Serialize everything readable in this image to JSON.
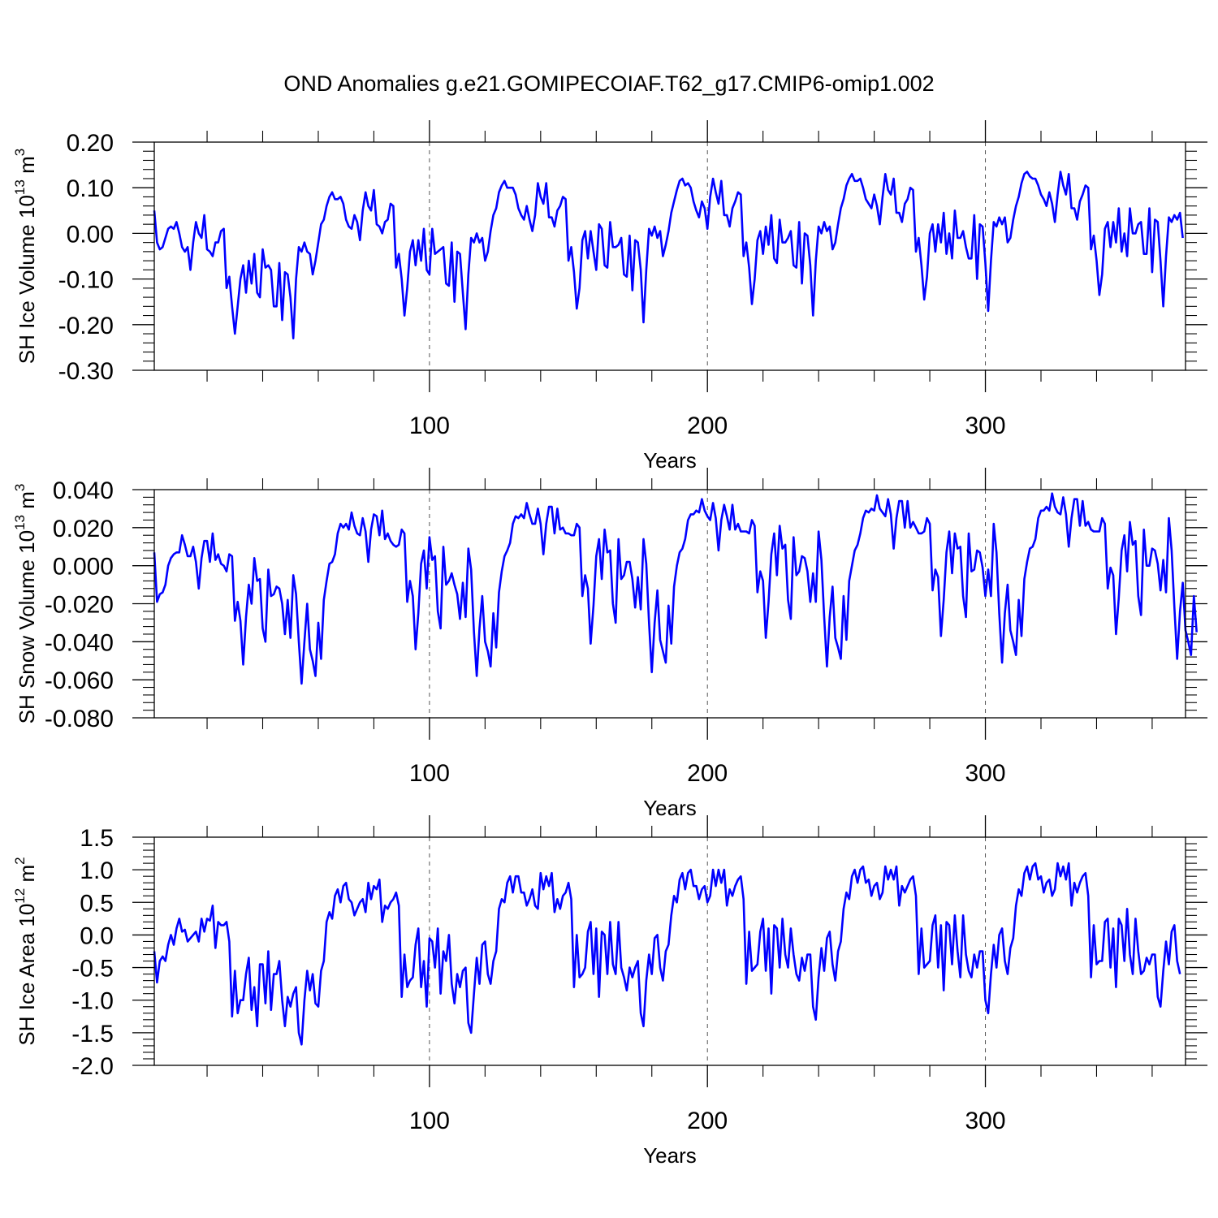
{
  "title": "OND Anomalies g.e21.GOMIPECOIAF.T62_g17.CMIP6-omip1.002",
  "line_color": "#0000ff",
  "chart_data": [
    {
      "type": "line",
      "name": "ice-volume",
      "title": "OND Anomalies g.e21.GOMIPECOIAF.T62_g17.CMIP6-omip1.002",
      "xlabel": "Years",
      "ylabel": {
        "main": "SH Ice Volume 10",
        "sup1": "13",
        "mid": " m",
        "sup2": "3"
      },
      "xlim": [
        1,
        372
      ],
      "ylim": [
        -0.3,
        0.2
      ],
      "x_ticks": [
        100,
        200,
        300
      ],
      "x_tick_labels": [
        "100",
        "200",
        "300"
      ],
      "y_ticks": [
        -0.3,
        -0.2,
        -0.1,
        0.0,
        0.1,
        0.2
      ],
      "y_tick_labels": [
        "-0.30",
        "-0.20",
        "-0.10",
        "0.00",
        "0.10",
        "0.20"
      ],
      "ref_lines_x": [
        100,
        200,
        300
      ],
      "x_start": 1,
      "values": [
        0.05,
        -0.02,
        -0.035,
        -0.03,
        -0.01,
        0.01,
        0.015,
        0.01,
        0.025,
        0.0,
        -0.03,
        -0.04,
        -0.03,
        -0.08,
        -0.02,
        0.025,
        0.0,
        -0.01,
        0.04,
        -0.035,
        -0.04,
        -0.05,
        -0.02,
        -0.02,
        0.005,
        0.01,
        -0.12,
        -0.095,
        -0.16,
        -0.22,
        -0.16,
        -0.1,
        -0.07,
        -0.13,
        -0.06,
        -0.11,
        -0.045,
        -0.13,
        -0.14,
        -0.035,
        -0.075,
        -0.07,
        -0.08,
        -0.16,
        -0.16,
        -0.065,
        -0.19,
        -0.085,
        -0.09,
        -0.14,
        -0.23,
        -0.1,
        -0.03,
        -0.04,
        -0.02,
        -0.04,
        -0.045,
        -0.09,
        -0.06,
        -0.02,
        0.02,
        0.03,
        0.06,
        0.08,
        0.09,
        0.075,
        0.075,
        0.08,
        0.065,
        0.03,
        0.015,
        0.01,
        0.04,
        0.025,
        -0.015,
        0.05,
        0.09,
        0.06,
        0.05,
        0.095,
        0.02,
        0.015,
        0.0,
        0.025,
        0.03,
        0.065,
        0.06,
        -0.075,
        -0.045,
        -0.1,
        -0.18,
        -0.12,
        -0.04,
        -0.015,
        -0.07,
        -0.015,
        -0.06,
        0.01,
        -0.08,
        -0.09,
        0.01,
        -0.045,
        -0.04,
        -0.035,
        -0.03,
        -0.11,
        -0.115,
        -0.02,
        -0.15,
        -0.04,
        -0.045,
        -0.13,
        -0.21,
        -0.09,
        -0.01,
        -0.02,
        0.0,
        -0.02,
        -0.01,
        -0.06,
        -0.04,
        0.005,
        0.04,
        0.055,
        0.09,
        0.105,
        0.115,
        0.1,
        0.1,
        0.1,
        0.085,
        0.055,
        0.04,
        0.03,
        0.06,
        0.03,
        0.005,
        0.04,
        0.11,
        0.08,
        0.065,
        0.11,
        0.035,
        0.035,
        0.015,
        0.05,
        0.06,
        0.08,
        0.075,
        -0.06,
        -0.03,
        -0.085,
        -0.165,
        -0.12,
        -0.015,
        0.005,
        -0.055,
        0.005,
        -0.04,
        -0.08,
        0.02,
        0.01,
        -0.07,
        -0.075,
        0.025,
        -0.03,
        -0.03,
        -0.025,
        -0.01,
        -0.09,
        -0.095,
        -0.005,
        -0.125,
        -0.015,
        -0.02,
        -0.08,
        -0.195,
        -0.08,
        0.01,
        -0.005,
        0.015,
        -0.01,
        0.005,
        -0.05,
        -0.025,
        0.005,
        0.045,
        0.07,
        0.095,
        0.115,
        0.12,
        0.105,
        0.11,
        0.1,
        0.07,
        0.05,
        0.035,
        0.07,
        0.055,
        0.01,
        0.08,
        0.12,
        0.09,
        0.065,
        0.115,
        0.04,
        0.04,
        0.015,
        0.055,
        0.07,
        0.09,
        0.085,
        -0.05,
        -0.02,
        -0.075,
        -0.155,
        -0.1,
        -0.015,
        0.005,
        -0.045,
        0.015,
        -0.025,
        0.04,
        -0.055,
        -0.065,
        0.03,
        -0.02,
        -0.02,
        -0.01,
        0.005,
        -0.07,
        -0.075,
        0.025,
        -0.11,
        0.0,
        -0.005,
        -0.07,
        -0.18,
        -0.06,
        0.015,
        0.0,
        0.025,
        0.005,
        0.015,
        -0.035,
        -0.02,
        0.02,
        0.055,
        0.075,
        0.105,
        0.12,
        0.13,
        0.115,
        0.115,
        0.12,
        0.1,
        0.075,
        0.065,
        0.055,
        0.085,
        0.06,
        0.02,
        0.08,
        0.13,
        0.095,
        0.085,
        0.12,
        0.045,
        0.045,
        0.025,
        0.065,
        0.075,
        0.1,
        0.095,
        -0.04,
        -0.01,
        -0.07,
        -0.145,
        -0.095,
        0.0,
        0.02,
        -0.04,
        0.02,
        -0.02,
        0.045,
        -0.045,
        0.0,
        -0.055,
        0.05,
        -0.01,
        -0.01,
        0.005,
        -0.03,
        -0.055,
        -0.055,
        0.04,
        -0.1,
        0.02,
        0.015,
        -0.065,
        -0.17,
        -0.06,
        0.025,
        0.015,
        0.035,
        0.02,
        0.035,
        -0.02,
        -0.01,
        0.03,
        0.06,
        0.08,
        0.11,
        0.13,
        0.135,
        0.125,
        0.12,
        0.12,
        0.105,
        0.085,
        0.075,
        0.06,
        0.09,
        0.065,
        0.025,
        0.085,
        0.135,
        0.105,
        0.085,
        0.13,
        0.055,
        0.055,
        0.03,
        0.07,
        0.085,
        0.105,
        0.1,
        -0.035,
        -0.005,
        -0.06,
        -0.135,
        -0.09,
        0.01,
        0.025,
        -0.03,
        0.025,
        -0.02,
        0.055,
        -0.04,
        0.0,
        -0.05,
        0.055,
        0.0,
        0.0,
        0.02,
        0.025,
        -0.045,
        -0.045,
        0.055,
        -0.085,
        0.03,
        0.025,
        -0.06,
        -0.16,
        -0.05,
        0.035,
        0.025,
        0.04,
        0.03,
        0.045,
        -0.01
      ]
    },
    {
      "type": "line",
      "name": "snow-volume",
      "xlabel": "Years",
      "ylabel": {
        "main": "SH Snow Volume 10",
        "sup1": "13",
        "mid": " m",
        "sup2": "3"
      },
      "xlim": [
        1,
        372
      ],
      "ylim": [
        -0.08,
        0.04
      ],
      "x_ticks": [
        100,
        200,
        300
      ],
      "x_tick_labels": [
        "100",
        "200",
        "300"
      ],
      "y_ticks": [
        -0.08,
        -0.06,
        -0.04,
        -0.02,
        0.0,
        0.02,
        0.04
      ],
      "y_tick_labels": [
        "-0.080",
        "-0.060",
        "-0.040",
        "-0.020",
        "0.000",
        "0.020",
        "0.040"
      ],
      "ref_lines_x": [
        100,
        200,
        300
      ],
      "x_start": 1,
      "values": [
        0.007,
        -0.019,
        -0.015,
        -0.014,
        -0.01,
        0.0,
        0.004,
        0.006,
        0.007,
        0.007,
        0.016,
        0.011,
        0.005,
        0.005,
        0.01,
        0.002,
        -0.012,
        0.004,
        0.013,
        0.013,
        0.002,
        0.017,
        0.003,
        0.006,
        0.001,
        0.0,
        -0.003,
        0.006,
        0.005,
        -0.029,
        -0.019,
        -0.029,
        -0.052,
        -0.027,
        -0.01,
        -0.02,
        0.004,
        -0.008,
        -0.007,
        -0.033,
        -0.04,
        -0.002,
        -0.016,
        -0.015,
        -0.011,
        -0.012,
        -0.02,
        -0.036,
        -0.018,
        -0.038,
        -0.005,
        -0.015,
        -0.04,
        -0.062,
        -0.04,
        -0.02,
        -0.044,
        -0.05,
        -0.058,
        -0.03,
        -0.049,
        -0.018,
        -0.008,
        0.001,
        0.002,
        0.006,
        0.017,
        0.022,
        0.02,
        0.022,
        0.019,
        0.028,
        0.021,
        0.017,
        0.016,
        0.025,
        0.018,
        0.002,
        0.019,
        0.027,
        0.026,
        0.016,
        0.029,
        0.014,
        0.017,
        0.013,
        0.011,
        0.01,
        0.011,
        0.019,
        0.017,
        -0.019,
        -0.008,
        -0.016,
        -0.044,
        -0.025,
        0.001,
        0.008,
        -0.012,
        0.015,
        0.003,
        0.005,
        -0.024,
        -0.033,
        0.01,
        -0.01,
        -0.008,
        -0.004,
        -0.01,
        -0.015,
        -0.028,
        -0.009,
        -0.027,
        0.009,
        -0.002,
        -0.035,
        -0.058,
        -0.033,
        -0.016,
        -0.04,
        -0.045,
        -0.053,
        -0.025,
        -0.043,
        -0.014,
        -0.003,
        0.005,
        0.008,
        0.012,
        0.022,
        0.026,
        0.025,
        0.027,
        0.025,
        0.033,
        0.027,
        0.022,
        0.022,
        0.03,
        0.022,
        0.006,
        0.022,
        0.031,
        0.031,
        0.017,
        0.03,
        0.019,
        0.02,
        0.017,
        0.017,
        0.016,
        0.016,
        0.022,
        0.02,
        -0.016,
        -0.005,
        -0.012,
        -0.041,
        -0.021,
        0.005,
        0.014,
        -0.007,
        0.019,
        0.007,
        0.008,
        -0.02,
        -0.03,
        0.014,
        -0.007,
        -0.005,
        0.002,
        0.002,
        -0.007,
        -0.022,
        -0.006,
        -0.023,
        0.014,
        0.001,
        -0.03,
        -0.056,
        -0.03,
        -0.013,
        -0.039,
        -0.045,
        -0.051,
        -0.021,
        -0.041,
        -0.011,
        0.0,
        0.007,
        0.009,
        0.014,
        0.024,
        0.027,
        0.027,
        0.029,
        0.028,
        0.035,
        0.029,
        0.026,
        0.024,
        0.033,
        0.025,
        0.008,
        0.024,
        0.032,
        0.026,
        0.019,
        0.032,
        0.019,
        0.022,
        0.018,
        0.018,
        0.018,
        0.017,
        0.024,
        0.021,
        -0.014,
        -0.003,
        -0.008,
        -0.038,
        -0.019,
        0.006,
        0.017,
        -0.005,
        0.021,
        0.009,
        0.011,
        -0.018,
        -0.028,
        0.015,
        -0.005,
        -0.003,
        0.005,
        0.004,
        -0.003,
        -0.019,
        -0.004,
        -0.019,
        0.018,
        0.003,
        -0.027,
        -0.053,
        -0.027,
        -0.011,
        -0.038,
        -0.043,
        -0.049,
        -0.016,
        -0.039,
        -0.008,
        0.0,
        0.008,
        0.011,
        0.017,
        0.025,
        0.029,
        0.028,
        0.03,
        0.029,
        0.037,
        0.03,
        0.028,
        0.026,
        0.035,
        0.027,
        0.009,
        0.025,
        0.034,
        0.034,
        0.02,
        0.034,
        0.02,
        0.023,
        0.02,
        0.017,
        0.017,
        0.018,
        0.025,
        0.022,
        -0.013,
        -0.002,
        -0.006,
        -0.037,
        -0.018,
        0.007,
        0.018,
        -0.004,
        0.017,
        0.009,
        0.01,
        -0.016,
        -0.027,
        0.017,
        -0.003,
        -0.002,
        0.008,
        0.007,
        -0.001,
        -0.016,
        -0.002,
        -0.016,
        0.022,
        0.007,
        -0.025,
        -0.051,
        -0.025,
        -0.01,
        -0.034,
        -0.04,
        -0.047,
        -0.018,
        -0.037,
        -0.007,
        0.002,
        0.009,
        0.01,
        0.014,
        0.025,
        0.029,
        0.029,
        0.031,
        0.029,
        0.038,
        0.031,
        0.028,
        0.027,
        0.036,
        0.027,
        0.01,
        0.025,
        0.035,
        0.035,
        0.021,
        0.034,
        0.021,
        0.023,
        0.019,
        0.018,
        0.018,
        0.018,
        0.025,
        0.022,
        -0.012,
        -0.001,
        -0.005,
        -0.036,
        -0.017,
        0.008,
        0.016,
        -0.003,
        0.023,
        0.011,
        0.013,
        -0.016,
        -0.026,
        0.019,
        0.0,
        0.0,
        0.009,
        0.008,
        0.001,
        -0.013,
        0.003,
        -0.014,
        0.025,
        0.008,
        -0.022,
        -0.049,
        -0.024,
        -0.009,
        -0.034,
        -0.04,
        -0.047,
        -0.016,
        -0.035
      ]
    },
    {
      "type": "line",
      "name": "ice-area",
      "xlabel": "Years",
      "ylabel": {
        "main": "SH Ice Area 10",
        "sup1": "12",
        "mid": " m",
        "sup2": "2"
      },
      "xlim": [
        1,
        372
      ],
      "ylim": [
        -2.0,
        1.5
      ],
      "x_ticks": [
        100,
        200,
        300
      ],
      "x_tick_labels": [
        "100",
        "200",
        "300"
      ],
      "y_ticks": [
        -2.0,
        -1.5,
        -1.0,
        -0.5,
        0.0,
        0.5,
        1.0,
        1.5
      ],
      "y_tick_labels": [
        "-2.0",
        "-1.5",
        "-1.0",
        "-0.5",
        "0.0",
        "0.5",
        "1.0",
        "1.5"
      ],
      "ref_lines_x": [
        100,
        200,
        300
      ],
      "x_start": 1,
      "values": [
        -0.25,
        -0.73,
        -0.4,
        -0.33,
        -0.4,
        -0.15,
        0.0,
        -0.15,
        0.1,
        0.25,
        0.05,
        0.08,
        -0.1,
        -0.05,
        0.0,
        0.05,
        -0.1,
        0.25,
        0.05,
        0.25,
        0.22,
        0.45,
        -0.2,
        0.2,
        0.15,
        0.15,
        0.2,
        -0.1,
        -1.25,
        -0.55,
        -1.2,
        -1.0,
        -1.0,
        -0.6,
        -0.35,
        -1.15,
        -0.8,
        -1.4,
        -0.45,
        -0.45,
        -1.05,
        -0.25,
        -1.15,
        -0.6,
        -0.6,
        -0.4,
        -1.0,
        -1.4,
        -0.95,
        -1.1,
        -0.9,
        -0.8,
        -1.5,
        -1.68,
        -1.0,
        -0.55,
        -0.85,
        -0.6,
        -1.05,
        -1.1,
        -0.55,
        -0.4,
        0.2,
        0.35,
        0.25,
        0.6,
        0.7,
        0.5,
        0.75,
        0.8,
        0.55,
        0.5,
        0.3,
        0.4,
        0.5,
        0.55,
        0.35,
        0.8,
        0.55,
        0.75,
        0.7,
        0.85,
        0.2,
        0.45,
        0.4,
        0.5,
        0.55,
        0.65,
        0.45,
        -0.95,
        -0.3,
        -0.8,
        -0.7,
        -0.65,
        -0.15,
        0.1,
        -0.8,
        -0.4,
        -1.1,
        -0.05,
        -0.1,
        -0.5,
        0.1,
        -0.9,
        -0.25,
        -0.4,
        0.0,
        -0.75,
        -1.05,
        -0.6,
        -0.8,
        -0.55,
        -0.5,
        -1.35,
        -1.5,
        -0.9,
        -0.35,
        -0.75,
        -0.15,
        -0.1,
        -0.6,
        -0.75,
        -0.4,
        -0.25,
        0.4,
        0.55,
        0.5,
        0.8,
        0.9,
        0.65,
        0.9,
        0.9,
        0.65,
        0.65,
        0.45,
        0.55,
        0.7,
        0.45,
        0.4,
        0.95,
        0.7,
        0.9,
        0.75,
        0.95,
        0.35,
        0.55,
        0.4,
        0.6,
        0.65,
        0.8,
        0.55,
        -0.8,
        0.0,
        -0.65,
        -0.6,
        -0.5,
        0.05,
        0.2,
        -0.6,
        0.1,
        -0.95,
        0.05,
        0.0,
        -0.6,
        0.2,
        -0.45,
        -0.6,
        0.2,
        -0.5,
        -0.65,
        -0.85,
        -0.5,
        -0.65,
        -0.5,
        -0.4,
        -1.2,
        -1.4,
        -0.7,
        -0.3,
        -0.6,
        -0.05,
        0.0,
        -0.5,
        -0.7,
        -0.25,
        -0.15,
        0.3,
        0.6,
        0.5,
        0.85,
        0.95,
        0.7,
        0.95,
        1.0,
        0.75,
        0.75,
        0.55,
        0.7,
        0.75,
        0.5,
        0.6,
        1.0,
        0.75,
        1.0,
        0.8,
        1.0,
        0.45,
        0.7,
        0.6,
        0.75,
        0.85,
        0.9,
        0.55,
        -0.75,
        0.05,
        -0.55,
        -0.5,
        -0.45,
        0.05,
        0.25,
        -0.55,
        0.1,
        -0.9,
        0.15,
        0.1,
        -0.5,
        0.25,
        -0.3,
        -0.5,
        0.1,
        -0.3,
        -0.6,
        -0.7,
        -0.35,
        -0.55,
        -0.3,
        -0.3,
        -1.1,
        -1.3,
        -0.65,
        -0.2,
        -0.55,
        -0.05,
        0.05,
        -0.45,
        -0.7,
        -0.25,
        -0.1,
        0.4,
        0.65,
        0.55,
        0.9,
        1.0,
        0.8,
        1.0,
        1.05,
        0.8,
        0.85,
        0.6,
        0.75,
        0.8,
        0.55,
        0.65,
        1.05,
        0.85,
        1.0,
        0.85,
        1.05,
        0.45,
        0.75,
        0.65,
        0.75,
        0.85,
        0.9,
        0.6,
        -0.6,
        0.1,
        -0.5,
        -0.45,
        -0.4,
        0.15,
        0.3,
        -0.5,
        0.15,
        -0.85,
        0.2,
        0.15,
        -0.45,
        0.3,
        -0.25,
        -0.65,
        0.3,
        -0.3,
        -0.55,
        -0.65,
        -0.3,
        -0.5,
        -0.25,
        -0.25,
        -1.0,
        -1.2,
        -0.6,
        -0.15,
        -0.5,
        0.0,
        0.1,
        -0.4,
        -0.6,
        -0.2,
        -0.05,
        0.45,
        0.7,
        0.6,
        0.95,
        1.05,
        0.85,
        1.05,
        1.1,
        0.85,
        0.9,
        0.65,
        0.8,
        0.85,
        0.6,
        0.7,
        1.1,
        0.9,
        1.05,
        0.85,
        1.1,
        0.45,
        0.8,
        0.65,
        0.8,
        0.9,
        0.95,
        0.6,
        -0.65,
        0.15,
        -0.45,
        -0.4,
        -0.4,
        0.2,
        0.25,
        -0.5,
        0.1,
        -0.8,
        0.25,
        0.15,
        -0.4,
        0.4,
        -0.3,
        -0.6,
        0.25,
        -0.25,
        -0.6,
        -0.55,
        -0.35,
        -0.45,
        -0.3,
        -0.3,
        -0.95,
        -1.1,
        -0.55,
        -0.1,
        -0.45,
        0.05,
        0.15,
        -0.4,
        -0.6
      ]
    }
  ]
}
